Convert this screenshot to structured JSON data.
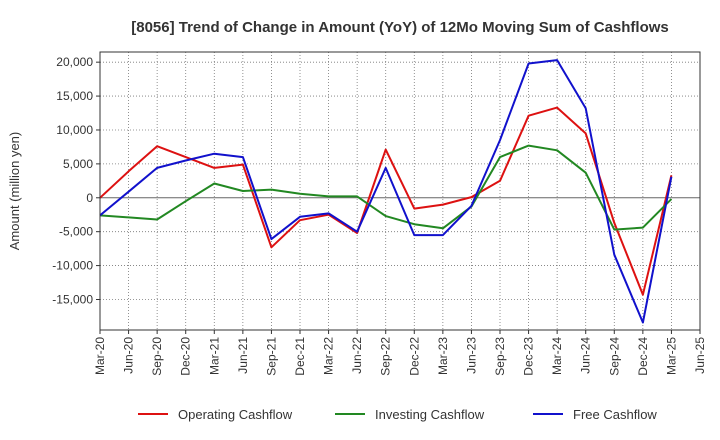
{
  "chart_data": {
    "type": "line",
    "title": "[8056]  Trend of Change in Amount (YoY) of 12Mo Moving Sum of Cashflows",
    "xlabel": "",
    "ylabel": "Amount (million yen)",
    "ylim": [
      -19500,
      21500
    ],
    "yticks": [
      -15000,
      -10000,
      -5000,
      0,
      5000,
      10000,
      15000,
      20000
    ],
    "ytick_labels": [
      "-15,000",
      "-10,000",
      "-5,000",
      "0",
      "5,000",
      "10,000",
      "15,000",
      "20,000"
    ],
    "x": [
      "Mar-20",
      "Jun-20",
      "Sep-20",
      "Dec-20",
      "Mar-21",
      "Jun-21",
      "Sep-21",
      "Dec-21",
      "Mar-22",
      "Jun-22",
      "Sep-22",
      "Dec-22",
      "Mar-23",
      "Jun-23",
      "Sep-23",
      "Dec-23",
      "Mar-24",
      "Jun-24",
      "Sep-24",
      "Dec-24",
      "Mar-25",
      "Jun-25"
    ],
    "grid": true,
    "legend_position": "bottom",
    "series": [
      {
        "name": "Operating Cashflow",
        "color": "#dd1111",
        "values": [
          0,
          3900,
          7600,
          6000,
          4400,
          4900,
          -7300,
          -3300,
          -2500,
          -5200,
          7100,
          -1600,
          -1000,
          100,
          2500,
          12100,
          13300,
          9500,
          -3700,
          -14300,
          3300,
          null
        ]
      },
      {
        "name": "Investing Cashflow",
        "color": "#228822",
        "values": [
          -2600,
          -2900,
          -3200,
          -500,
          2100,
          1000,
          1200,
          600,
          200,
          200,
          -2700,
          -3900,
          -4500,
          -1300,
          6000,
          7700,
          7000,
          3700,
          -4700,
          -4400,
          -200,
          null
        ]
      },
      {
        "name": "Free Cashflow",
        "color": "#1111cc",
        "values": [
          -2600,
          900,
          4400,
          5500,
          6500,
          6000,
          -6100,
          -2800,
          -2300,
          -5000,
          4400,
          -5500,
          -5500,
          -1200,
          8500,
          19800,
          20300,
          13200,
          -8400,
          -18400,
          3100,
          null
        ]
      }
    ]
  }
}
